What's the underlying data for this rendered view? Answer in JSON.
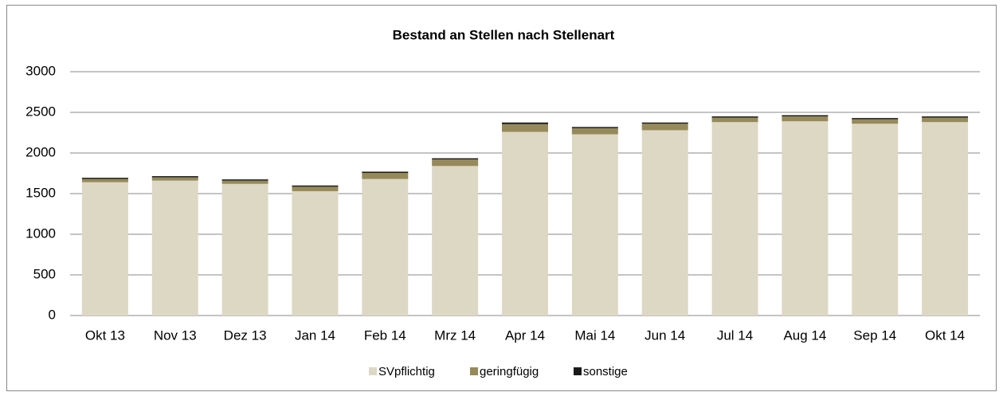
{
  "chart_data": {
    "type": "stacked_bar",
    "title": "Bestand an Stellen nach Stellenart",
    "categories": [
      "Okt 13",
      "Nov 13",
      "Dez 13",
      "Jan 14",
      "Feb 14",
      "Mrz 14",
      "Apr 14",
      "Mai 14",
      "Jun 14",
      "Jul 14",
      "Aug 14",
      "Sep 14",
      "Okt 14"
    ],
    "series": [
      {
        "name": "SVpflichtig",
        "color": "#ddd8c4",
        "values": [
          1640,
          1660,
          1620,
          1530,
          1680,
          1840,
          2260,
          2230,
          2280,
          2380,
          2390,
          2360,
          2380
        ]
      },
      {
        "name": "geringfügig",
        "color": "#968a5a",
        "values": [
          40,
          40,
          40,
          55,
          75,
          80,
          95,
          75,
          80,
          55,
          60,
          55,
          55
        ]
      },
      {
        "name": "sonstige",
        "color": "#1a1a1a",
        "values": [
          15,
          15,
          15,
          15,
          15,
          15,
          20,
          15,
          15,
          15,
          15,
          15,
          15
        ]
      }
    ],
    "ylim": [
      0,
      3000
    ],
    "yticks": [
      0,
      500,
      1000,
      1500,
      2000,
      2500,
      3000
    ],
    "grid": true,
    "legend": "bottom"
  }
}
